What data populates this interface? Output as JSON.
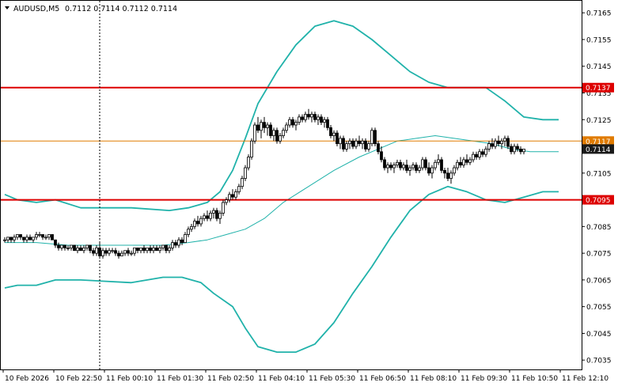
{
  "header": {
    "symbol": "AUDUSD,M5",
    "ohlc": "0.7112 0.7114 0.7112 0.7114",
    "menu_icon": "triangle-down-icon"
  },
  "colors": {
    "background": "#ffffff",
    "frame": "#000000",
    "bollinger": "#20b2aa",
    "level_line": "#dd0000",
    "price_line": "#e07b00",
    "candle_bull": "#ffffff",
    "candle_bear": "#000000",
    "label_red": "#dd0000",
    "label_orange": "#e07b00"
  },
  "levels": [
    {
      "name": "upper-resistance",
      "value": 0.7137,
      "label": "0.7137"
    },
    {
      "name": "lower-support",
      "value": 0.7095,
      "label": "0.7095"
    }
  ],
  "price_markers": [
    {
      "value": 0.7117,
      "label": "0.7117",
      "style": "orange"
    },
    {
      "value": 0.7114,
      "label": "0.7114",
      "style": "dark"
    }
  ],
  "chart_data": {
    "type": "candlestick",
    "y_ticks": [
      "0.7165",
      "0.7155",
      "0.7145",
      "0.7135",
      "0.7125",
      "0.7115",
      "0.7105",
      "0.7095",
      "0.7085",
      "0.7075",
      "0.7065",
      "0.7055",
      "0.7045",
      "0.7035"
    ],
    "y_tick_values": [
      0.7165,
      0.7155,
      0.7145,
      0.7135,
      0.7125,
      0.7115,
      0.7105,
      0.7095,
      0.7085,
      0.7075,
      0.7065,
      0.7055,
      0.7045,
      0.7035
    ],
    "ylim": [
      0.70315,
      0.71695
    ],
    "x_ticks": [
      "10 Feb 2026",
      "10 Feb 22:50",
      "11 Feb 00:10",
      "11 Feb 01:30",
      "11 Feb 02:50",
      "11 Feb 04:10",
      "11 Feb 05:30",
      "11 Feb 06:50",
      "11 Feb 08:10",
      "11 Feb 09:30",
      "11 Feb 10:50",
      "11 Feb 12:10"
    ],
    "x_tick_index": [
      0,
      16,
      32,
      48,
      64,
      80,
      96,
      112,
      128,
      144,
      160,
      176
    ],
    "crosshair_index": 30,
    "candles": [
      [
        0.708,
        0.7081,
        0.7079,
        0.708
      ],
      [
        0.708,
        0.7081,
        0.7079,
        0.7081
      ],
      [
        0.7081,
        0.7081,
        0.7079,
        0.708
      ],
      [
        0.708,
        0.7082,
        0.7079,
        0.7081
      ],
      [
        0.7081,
        0.7082,
        0.708,
        0.7082
      ],
      [
        0.7082,
        0.7082,
        0.708,
        0.7081
      ],
      [
        0.7081,
        0.7081,
        0.7079,
        0.708
      ],
      [
        0.708,
        0.7082,
        0.7079,
        0.7081
      ],
      [
        0.7081,
        0.7082,
        0.708,
        0.708
      ],
      [
        0.708,
        0.7081,
        0.7079,
        0.7081
      ],
      [
        0.7081,
        0.7083,
        0.708,
        0.7082
      ],
      [
        0.7082,
        0.7083,
        0.7081,
        0.7082
      ],
      [
        0.7082,
        0.7082,
        0.708,
        0.7081
      ],
      [
        0.7081,
        0.7082,
        0.708,
        0.7081
      ],
      [
        0.7081,
        0.7082,
        0.708,
        0.7082
      ],
      [
        0.7082,
        0.7082,
        0.708,
        0.708
      ],
      [
        0.708,
        0.708,
        0.7077,
        0.7078
      ],
      [
        0.7078,
        0.7079,
        0.7076,
        0.7077
      ],
      [
        0.7077,
        0.7078,
        0.7076,
        0.7078
      ],
      [
        0.7078,
        0.7078,
        0.7076,
        0.7077
      ],
      [
        0.7077,
        0.7078,
        0.7076,
        0.7077
      ],
      [
        0.7077,
        0.7078,
        0.7076,
        0.7078
      ],
      [
        0.7078,
        0.7078,
        0.7076,
        0.7076
      ],
      [
        0.7076,
        0.7078,
        0.7075,
        0.7077
      ],
      [
        0.7077,
        0.7078,
        0.7076,
        0.7076
      ],
      [
        0.7076,
        0.7078,
        0.7075,
        0.7077
      ],
      [
        0.7077,
        0.7078,
        0.7076,
        0.7078
      ],
      [
        0.7078,
        0.7078,
        0.7075,
        0.7076
      ],
      [
        0.7076,
        0.7077,
        0.7074,
        0.7075
      ],
      [
        0.7075,
        0.7078,
        0.7074,
        0.7077
      ],
      [
        0.7077,
        0.7079,
        0.7073,
        0.7074
      ],
      [
        0.7074,
        0.7077,
        0.7073,
        0.7076
      ],
      [
        0.7076,
        0.7077,
        0.7074,
        0.7075
      ],
      [
        0.7075,
        0.7077,
        0.7074,
        0.7076
      ],
      [
        0.7076,
        0.7077,
        0.7075,
        0.7076
      ],
      [
        0.7076,
        0.7077,
        0.7074,
        0.7075
      ],
      [
        0.7075,
        0.7076,
        0.7073,
        0.7074
      ],
      [
        0.7074,
        0.7076,
        0.7074,
        0.7075
      ],
      [
        0.7075,
        0.7076,
        0.7074,
        0.7076
      ],
      [
        0.7076,
        0.7077,
        0.7074,
        0.7075
      ],
      [
        0.7075,
        0.7076,
        0.7074,
        0.7075
      ],
      [
        0.7075,
        0.7077,
        0.7074,
        0.7077
      ],
      [
        0.7077,
        0.7077,
        0.7075,
        0.7076
      ],
      [
        0.7076,
        0.7077,
        0.7075,
        0.7077
      ],
      [
        0.7077,
        0.7078,
        0.7075,
        0.7076
      ],
      [
        0.7076,
        0.7077,
        0.7075,
        0.7077
      ],
      [
        0.7077,
        0.7078,
        0.7075,
        0.7076
      ],
      [
        0.7076,
        0.7078,
        0.7075,
        0.7077
      ],
      [
        0.7077,
        0.7078,
        0.7076,
        0.7076
      ],
      [
        0.7076,
        0.7078,
        0.7075,
        0.7077
      ],
      [
        0.7077,
        0.7078,
        0.7076,
        0.7078
      ],
      [
        0.7078,
        0.7078,
        0.7075,
        0.7076
      ],
      [
        0.7076,
        0.7078,
        0.7075,
        0.7077
      ],
      [
        0.7077,
        0.708,
        0.7076,
        0.7079
      ],
      [
        0.7079,
        0.708,
        0.7077,
        0.7078
      ],
      [
        0.7078,
        0.7081,
        0.7077,
        0.708
      ],
      [
        0.708,
        0.7081,
        0.7078,
        0.7079
      ],
      [
        0.7079,
        0.7083,
        0.7079,
        0.7082
      ],
      [
        0.7082,
        0.7085,
        0.7081,
        0.7084
      ],
      [
        0.7084,
        0.7086,
        0.7083,
        0.7085
      ],
      [
        0.7085,
        0.7088,
        0.7084,
        0.7087
      ],
      [
        0.7087,
        0.7089,
        0.7085,
        0.7086
      ],
      [
        0.7086,
        0.7089,
        0.7085,
        0.7088
      ],
      [
        0.7088,
        0.709,
        0.7087,
        0.7089
      ],
      [
        0.7089,
        0.7091,
        0.7087,
        0.7088
      ],
      [
        0.7088,
        0.7091,
        0.7087,
        0.709
      ],
      [
        0.709,
        0.7092,
        0.7088,
        0.7091
      ],
      [
        0.7091,
        0.7092,
        0.7087,
        0.7088
      ],
      [
        0.7088,
        0.7091,
        0.7086,
        0.709
      ],
      [
        0.709,
        0.7095,
        0.7089,
        0.7094
      ],
      [
        0.7094,
        0.7096,
        0.7093,
        0.7095
      ],
      [
        0.7095,
        0.7098,
        0.7094,
        0.7097
      ],
      [
        0.7097,
        0.7099,
        0.7095,
        0.7096
      ],
      [
        0.7096,
        0.7099,
        0.7095,
        0.7098
      ],
      [
        0.7098,
        0.7101,
        0.7097,
        0.71
      ],
      [
        0.71,
        0.7104,
        0.7099,
        0.7103
      ],
      [
        0.7103,
        0.7108,
        0.7102,
        0.7107
      ],
      [
        0.7107,
        0.7112,
        0.7106,
        0.7111
      ],
      [
        0.7111,
        0.7118,
        0.711,
        0.7117
      ],
      [
        0.7117,
        0.7124,
        0.7116,
        0.7123
      ],
      [
        0.7123,
        0.7126,
        0.712,
        0.7121
      ],
      [
        0.7121,
        0.7125,
        0.7118,
        0.7124
      ],
      [
        0.7124,
        0.7126,
        0.712,
        0.7122
      ],
      [
        0.7122,
        0.7124,
        0.7119,
        0.7123
      ],
      [
        0.7123,
        0.7124,
        0.7118,
        0.7119
      ],
      [
        0.7119,
        0.7122,
        0.7117,
        0.7121
      ],
      [
        0.7121,
        0.7122,
        0.7116,
        0.7117
      ],
      [
        0.7117,
        0.712,
        0.7116,
        0.7119
      ],
      [
        0.7119,
        0.7122,
        0.7118,
        0.7121
      ],
      [
        0.7121,
        0.7124,
        0.712,
        0.7123
      ],
      [
        0.7123,
        0.7126,
        0.7122,
        0.7125
      ],
      [
        0.7125,
        0.7126,
        0.7122,
        0.7123
      ],
      [
        0.7123,
        0.7125,
        0.7121,
        0.7124
      ],
      [
        0.7124,
        0.7127,
        0.7123,
        0.7126
      ],
      [
        0.7126,
        0.7127,
        0.7124,
        0.7125
      ],
      [
        0.7125,
        0.7128,
        0.7124,
        0.7127
      ],
      [
        0.7127,
        0.7129,
        0.7125,
        0.7126
      ],
      [
        0.7126,
        0.7128,
        0.7124,
        0.7127
      ],
      [
        0.7127,
        0.7128,
        0.7124,
        0.7125
      ],
      [
        0.7125,
        0.7127,
        0.7123,
        0.7126
      ],
      [
        0.7126,
        0.7127,
        0.7123,
        0.7124
      ],
      [
        0.7124,
        0.7126,
        0.7122,
        0.7125
      ],
      [
        0.7125,
        0.7126,
        0.7121,
        0.7122
      ],
      [
        0.7122,
        0.7123,
        0.7118,
        0.7119
      ],
      [
        0.7119,
        0.7121,
        0.7117,
        0.712
      ],
      [
        0.712,
        0.7121,
        0.7115,
        0.7116
      ],
      [
        0.7116,
        0.7119,
        0.7114,
        0.7118
      ],
      [
        0.7118,
        0.7119,
        0.7113,
        0.7114
      ],
      [
        0.7114,
        0.7117,
        0.7113,
        0.7116
      ],
      [
        0.7116,
        0.7118,
        0.7114,
        0.7117
      ],
      [
        0.7117,
        0.7118,
        0.7114,
        0.7115
      ],
      [
        0.7115,
        0.7118,
        0.7114,
        0.7117
      ],
      [
        0.7117,
        0.7119,
        0.7115,
        0.7116
      ],
      [
        0.7116,
        0.7118,
        0.7114,
        0.7117
      ],
      [
        0.7117,
        0.7118,
        0.7113,
        0.7114
      ],
      [
        0.7114,
        0.7117,
        0.7113,
        0.7116
      ],
      [
        0.7116,
        0.7122,
        0.7115,
        0.7121
      ],
      [
        0.7121,
        0.7122,
        0.7115,
        0.7116
      ],
      [
        0.7116,
        0.7117,
        0.7112,
        0.7113
      ],
      [
        0.7113,
        0.7115,
        0.7109,
        0.711
      ],
      [
        0.711,
        0.7111,
        0.7106,
        0.7107
      ],
      [
        0.7107,
        0.7109,
        0.7105,
        0.7108
      ],
      [
        0.7108,
        0.7109,
        0.7106,
        0.7107
      ],
      [
        0.7107,
        0.7109,
        0.7105,
        0.7108
      ],
      [
        0.7108,
        0.711,
        0.7107,
        0.7109
      ],
      [
        0.7109,
        0.711,
        0.7106,
        0.7107
      ],
      [
        0.7107,
        0.7109,
        0.7106,
        0.7108
      ],
      [
        0.7108,
        0.711,
        0.7105,
        0.7106
      ],
      [
        0.7106,
        0.7108,
        0.7104,
        0.7107
      ],
      [
        0.7107,
        0.7109,
        0.7106,
        0.7108
      ],
      [
        0.7108,
        0.7109,
        0.7105,
        0.7106
      ],
      [
        0.7106,
        0.7108,
        0.7105,
        0.7107
      ],
      [
        0.7107,
        0.7111,
        0.7106,
        0.711
      ],
      [
        0.711,
        0.7111,
        0.7106,
        0.7107
      ],
      [
        0.7107,
        0.7109,
        0.7104,
        0.7105
      ],
      [
        0.7105,
        0.7108,
        0.7103,
        0.7107
      ],
      [
        0.7107,
        0.711,
        0.7106,
        0.7109
      ],
      [
        0.7109,
        0.7112,
        0.7108,
        0.711
      ],
      [
        0.711,
        0.7111,
        0.7105,
        0.7106
      ],
      [
        0.7106,
        0.7107,
        0.7103,
        0.7105
      ],
      [
        0.7105,
        0.7107,
        0.7102,
        0.7103
      ],
      [
        0.7103,
        0.7106,
        0.7101,
        0.7105
      ],
      [
        0.7105,
        0.7108,
        0.7104,
        0.7107
      ],
      [
        0.7107,
        0.711,
        0.7106,
        0.7109
      ],
      [
        0.7109,
        0.7111,
        0.7107,
        0.7108
      ],
      [
        0.7108,
        0.7111,
        0.7107,
        0.711
      ],
      [
        0.711,
        0.7112,
        0.7108,
        0.7109
      ],
      [
        0.7109,
        0.7111,
        0.7108,
        0.711
      ],
      [
        0.711,
        0.7113,
        0.7109,
        0.7112
      ],
      [
        0.7112,
        0.7113,
        0.711,
        0.7111
      ],
      [
        0.7111,
        0.7114,
        0.711,
        0.7113
      ],
      [
        0.7113,
        0.7114,
        0.7111,
        0.7112
      ],
      [
        0.7112,
        0.7115,
        0.7111,
        0.7114
      ],
      [
        0.7114,
        0.7117,
        0.7113,
        0.7116
      ],
      [
        0.7116,
        0.7118,
        0.7114,
        0.7115
      ],
      [
        0.7115,
        0.7118,
        0.7114,
        0.7117
      ],
      [
        0.7117,
        0.7119,
        0.7115,
        0.7116
      ],
      [
        0.7116,
        0.7118,
        0.7114,
        0.7117
      ],
      [
        0.7117,
        0.7119,
        0.7115,
        0.7118
      ],
      [
        0.7118,
        0.7119,
        0.7114,
        0.7115
      ],
      [
        0.7115,
        0.7116,
        0.7112,
        0.7113
      ],
      [
        0.7113,
        0.7116,
        0.7112,
        0.7115
      ],
      [
        0.7115,
        0.7116,
        0.7113,
        0.7114
      ],
      [
        0.7114,
        0.7115,
        0.7112,
        0.7113
      ],
      [
        0.7113,
        0.7114,
        0.7112,
        0.7114
      ]
    ],
    "bb_upper": [
      [
        0,
        0.7097
      ],
      [
        4,
        0.7095
      ],
      [
        10,
        0.7094
      ],
      [
        16,
        0.7095
      ],
      [
        24,
        0.7092
      ],
      [
        40,
        0.7092
      ],
      [
        52,
        0.7091
      ],
      [
        58,
        0.7092
      ],
      [
        64,
        0.7094
      ],
      [
        68,
        0.7098
      ],
      [
        72,
        0.7106
      ],
      [
        76,
        0.7118
      ],
      [
        80,
        0.7131
      ],
      [
        86,
        0.7143
      ],
      [
        92,
        0.7153
      ],
      [
        98,
        0.716
      ],
      [
        104,
        0.7162
      ],
      [
        110,
        0.716
      ],
      [
        116,
        0.7155
      ],
      [
        122,
        0.7149
      ],
      [
        128,
        0.7143
      ],
      [
        134,
        0.7139
      ],
      [
        140,
        0.7137
      ],
      [
        146,
        0.7137
      ],
      [
        152,
        0.7137
      ],
      [
        158,
        0.7132
      ],
      [
        164,
        0.7126
      ],
      [
        170,
        0.7125
      ],
      [
        175,
        0.7125
      ]
    ],
    "bb_middle": [
      [
        0,
        0.7079
      ],
      [
        10,
        0.7079
      ],
      [
        20,
        0.7078
      ],
      [
        30,
        0.7078
      ],
      [
        40,
        0.7078
      ],
      [
        50,
        0.7078
      ],
      [
        58,
        0.7079
      ],
      [
        64,
        0.708
      ],
      [
        70,
        0.7082
      ],
      [
        76,
        0.7084
      ],
      [
        82,
        0.7088
      ],
      [
        88,
        0.7094
      ],
      [
        96,
        0.71
      ],
      [
        104,
        0.7106
      ],
      [
        112,
        0.7111
      ],
      [
        118,
        0.7114
      ],
      [
        124,
        0.7117
      ],
      [
        130,
        0.7118
      ],
      [
        136,
        0.7119
      ],
      [
        142,
        0.7118
      ],
      [
        148,
        0.7117
      ],
      [
        154,
        0.7116
      ],
      [
        160,
        0.7114
      ],
      [
        166,
        0.7113
      ],
      [
        175,
        0.7113
      ]
    ],
    "bb_lower": [
      [
        0,
        0.7062
      ],
      [
        4,
        0.7063
      ],
      [
        10,
        0.7063
      ],
      [
        16,
        0.7065
      ],
      [
        24,
        0.7065
      ],
      [
        40,
        0.7064
      ],
      [
        50,
        0.7066
      ],
      [
        56,
        0.7066
      ],
      [
        62,
        0.7064
      ],
      [
        66,
        0.706
      ],
      [
        72,
        0.7055
      ],
      [
        76,
        0.7047
      ],
      [
        80,
        0.704
      ],
      [
        86,
        0.7038
      ],
      [
        92,
        0.7038
      ],
      [
        98,
        0.7041
      ],
      [
        104,
        0.7049
      ],
      [
        110,
        0.706
      ],
      [
        116,
        0.707
      ],
      [
        122,
        0.7081
      ],
      [
        128,
        0.7091
      ],
      [
        134,
        0.7097
      ],
      [
        140,
        0.71
      ],
      [
        146,
        0.7098
      ],
      [
        152,
        0.7095
      ],
      [
        158,
        0.7094
      ],
      [
        164,
        0.7096
      ],
      [
        170,
        0.7098
      ],
      [
        175,
        0.7098
      ]
    ]
  }
}
